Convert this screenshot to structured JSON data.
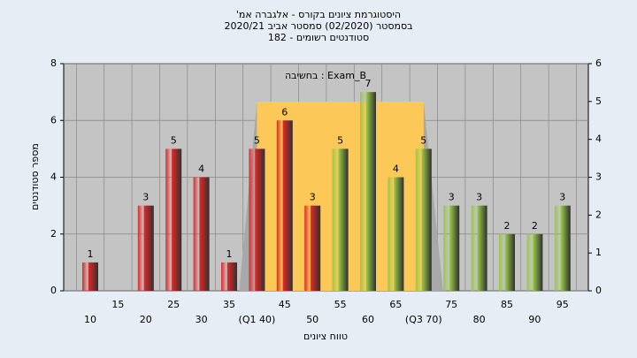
{
  "chart_data": {
    "type": "bar",
    "title": "היסטוגרמת ציונים בקורס - אלגברה אמ'",
    "subtitle": "בסמסטר  (02/2020)  סמסטר אביב 2020/21",
    "subtitle2": "סטודנטים רשומים - 182",
    "annotation": "Exam_B : בחשיבה",
    "x_label": "טווח ציונים",
    "y_label": "מספר סטודנטים",
    "categories": [
      "10",
      "15",
      "20",
      "25",
      "30",
      "35",
      "(Q1 40)",
      "45",
      "50",
      "55",
      "60",
      "65",
      "(Q3 70)",
      "75",
      "80",
      "85",
      "90",
      "95"
    ],
    "values": [
      1,
      null,
      3,
      5,
      4,
      1,
      5,
      6,
      3,
      5,
      7,
      4,
      5,
      3,
      3,
      2,
      2,
      3
    ],
    "colors": [
      "#e02828",
      "#e02828",
      "#e02828",
      "#e02828",
      "#e02828",
      "#e02828",
      "#e02828",
      "#e02828",
      "#e02828",
      "#98c848",
      "#98c848",
      "#98c848",
      "#98c848",
      "#98c848",
      "#98c848",
      "#98c848",
      "#98c848",
      "#98c848"
    ],
    "ylim": [
      0,
      8
    ],
    "yticks": [
      0,
      2,
      4,
      6,
      8
    ],
    "y2lim": [
      0,
      6
    ],
    "y2ticks": [
      0,
      1,
      2,
      3,
      4,
      5,
      6
    ],
    "grid": true
  }
}
